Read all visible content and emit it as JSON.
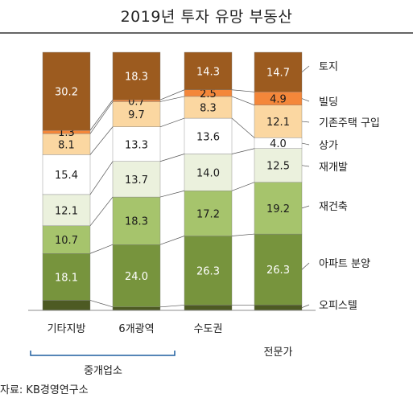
{
  "title": "2019년 투자 유망 부동산",
  "source": "자료: KB경영연구소",
  "group_label": "중개업소",
  "chart_data": {
    "type": "bar",
    "stacked": true,
    "normalized_to": 100,
    "title": "2019년 투자 유망 부동산",
    "categories": [
      "기타지방",
      "6개광역",
      "수도권",
      "전문가"
    ],
    "series": [
      {
        "name": "오피스텔",
        "values": [
          3.9,
          1.3,
          2.0,
          2.0
        ],
        "color": "#4d5a23"
      },
      {
        "name": "아파트 분양",
        "values": [
          18.1,
          24.0,
          26.3,
          26.3
        ],
        "color": "#77943d"
      },
      {
        "name": "재건축",
        "values": [
          10.7,
          18.3,
          17.2,
          19.2
        ],
        "color": "#a6c46c"
      },
      {
        "name": "재개발",
        "values": [
          12.1,
          13.7,
          14.0,
          12.5
        ],
        "color": "#ebf1dd"
      },
      {
        "name": "상가",
        "values": [
          15.4,
          13.3,
          13.6,
          4.0
        ],
        "color": "#ffffff"
      },
      {
        "name": "기존주택 구입",
        "values": [
          8.1,
          9.7,
          8.3,
          12.1
        ],
        "color": "#fbd7a1"
      },
      {
        "name": "빌딩",
        "values": [
          1.3,
          0.7,
          2.5,
          4.9
        ],
        "color": "#f4873a"
      },
      {
        "name": "토지",
        "values": [
          30.2,
          18.3,
          14.3,
          14.7
        ],
        "color": "#9c5b1f"
      }
    ],
    "data_labels": [
      [
        "",
        "18.1",
        "10.7",
        "12.1",
        "15.4",
        "8.1",
        "1.3",
        "30.2"
      ],
      [
        "",
        "24.0",
        "18.3",
        "13.7",
        "13.3",
        "9.7",
        "0.7",
        "18.3"
      ],
      [
        "",
        "26.3",
        "17.2",
        "14.0",
        "13.6",
        "8.3",
        "2.5",
        "14.3"
      ],
      [
        "",
        "26.3",
        "19.2",
        "12.5",
        "4.0",
        "12.1",
        "4.9",
        "14.7"
      ]
    ],
    "legend_position": "right",
    "grid": false
  }
}
